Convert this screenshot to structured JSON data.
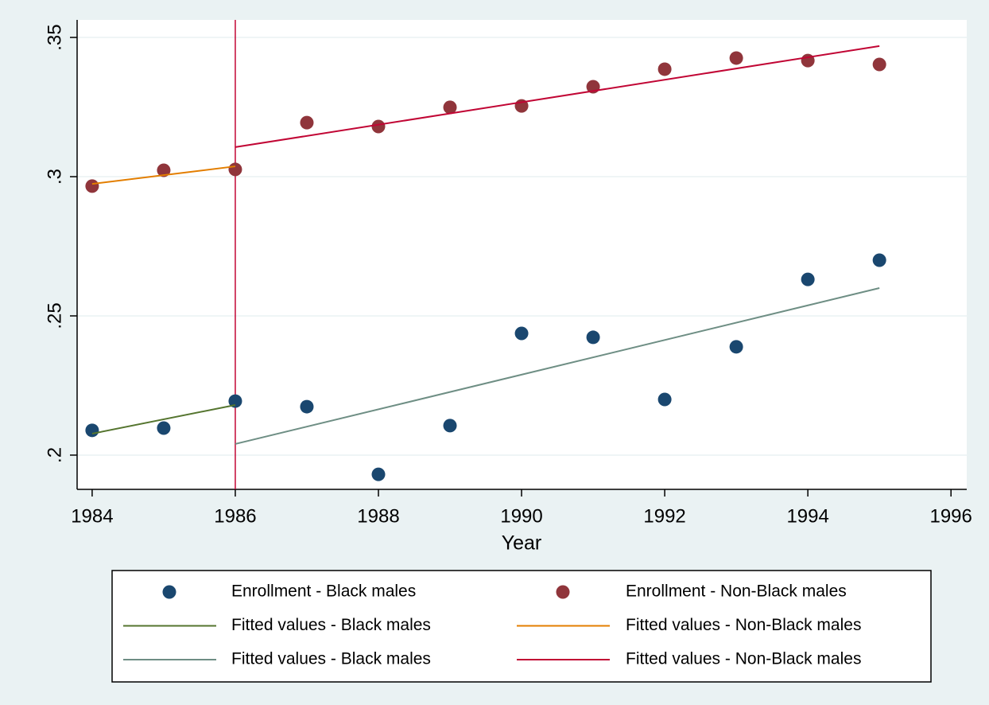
{
  "chart_data": {
    "type": "scatter",
    "x_label": "Year",
    "xlim": [
      1983.79,
      1996.22
    ],
    "ylim": [
      0.1877,
      0.3563
    ],
    "xticks": [
      1984,
      1986,
      1988,
      1990,
      1992,
      1994,
      1996
    ],
    "yticks": [
      {
        "value": 0.2,
        "label": ".2"
      },
      {
        "value": 0.25,
        "label": ".25"
      },
      {
        "value": 0.3,
        "label": ".3"
      },
      {
        "value": 0.35,
        "label": ".35"
      }
    ],
    "grid": true,
    "xline": {
      "value": 1986,
      "color": "#c10534"
    },
    "legend": "bottom",
    "series": [
      {
        "name": "Enrollment - Black males",
        "mode": "markers",
        "color": "#1a476f",
        "x": [
          1984,
          1985,
          1986,
          1987,
          1988,
          1989,
          1990,
          1991,
          1992,
          1993,
          1994,
          1995
        ],
        "values": [
          0.2089,
          0.2097,
          0.2194,
          0.2174,
          0.1931,
          0.2106,
          0.2437,
          0.2423,
          0.22,
          0.2389,
          0.2631,
          0.27
        ]
      },
      {
        "name": "Enrollment - Non-Black males",
        "mode": "markers",
        "color": "#90353b",
        "x": [
          1984,
          1985,
          1986,
          1987,
          1988,
          1989,
          1990,
          1991,
          1992,
          1993,
          1994,
          1995
        ],
        "values": [
          0.2966,
          0.3023,
          0.3026,
          0.3194,
          0.318,
          0.3249,
          0.3254,
          0.3323,
          0.3386,
          0.3426,
          0.3417,
          0.3403
        ]
      },
      {
        "name": "Fitted values - Black males",
        "mode": "line",
        "color": "#55752f",
        "x": [
          1984,
          1986
        ],
        "values": [
          0.2077,
          0.218
        ]
      },
      {
        "name": "Fitted values - Non-Black males",
        "mode": "line",
        "color": "#e37e00",
        "x": [
          1984,
          1986
        ],
        "values": [
          0.2974,
          0.3037
        ]
      },
      {
        "name": "Fitted values - Black males",
        "mode": "line",
        "color": "#6e8e84",
        "x": [
          1986,
          1995
        ],
        "values": [
          0.204,
          0.26
        ]
      },
      {
        "name": "Fitted values - Non-Black males",
        "mode": "line",
        "color": "#c10534",
        "x": [
          1986,
          1995
        ],
        "values": [
          0.3106,
          0.3469
        ]
      }
    ]
  }
}
